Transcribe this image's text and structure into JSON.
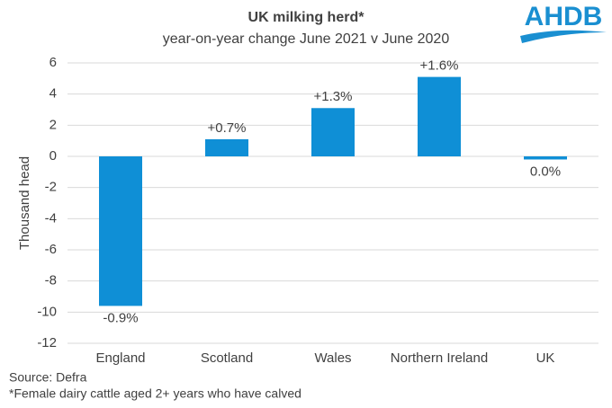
{
  "chart_data": {
    "type": "bar",
    "title": "UK milking herd*",
    "subtitle": "year-on-year  change  June 2021 v June 2020",
    "y_label": "Thousand head",
    "categories": [
      "England",
      "Scotland",
      "Wales",
      "Northern Ireland",
      "UK"
    ],
    "values": [
      -9.6,
      1.1,
      3.1,
      5.1,
      -0.2
    ],
    "percent_labels": [
      "-0.9%",
      "+0.7%",
      "+1.3%",
      "+1.6%",
      "0.0%"
    ],
    "color": "#0f8fd6",
    "ylim": [
      -12,
      6
    ],
    "yticks": [
      -12,
      -10,
      -8,
      -6,
      -4,
      -2,
      0,
      2,
      4,
      6
    ],
    "grid": true,
    "source": "Source: Defra",
    "note": "*Female dairy cattle aged 2+ years who have calved",
    "logo": "AHDB"
  }
}
